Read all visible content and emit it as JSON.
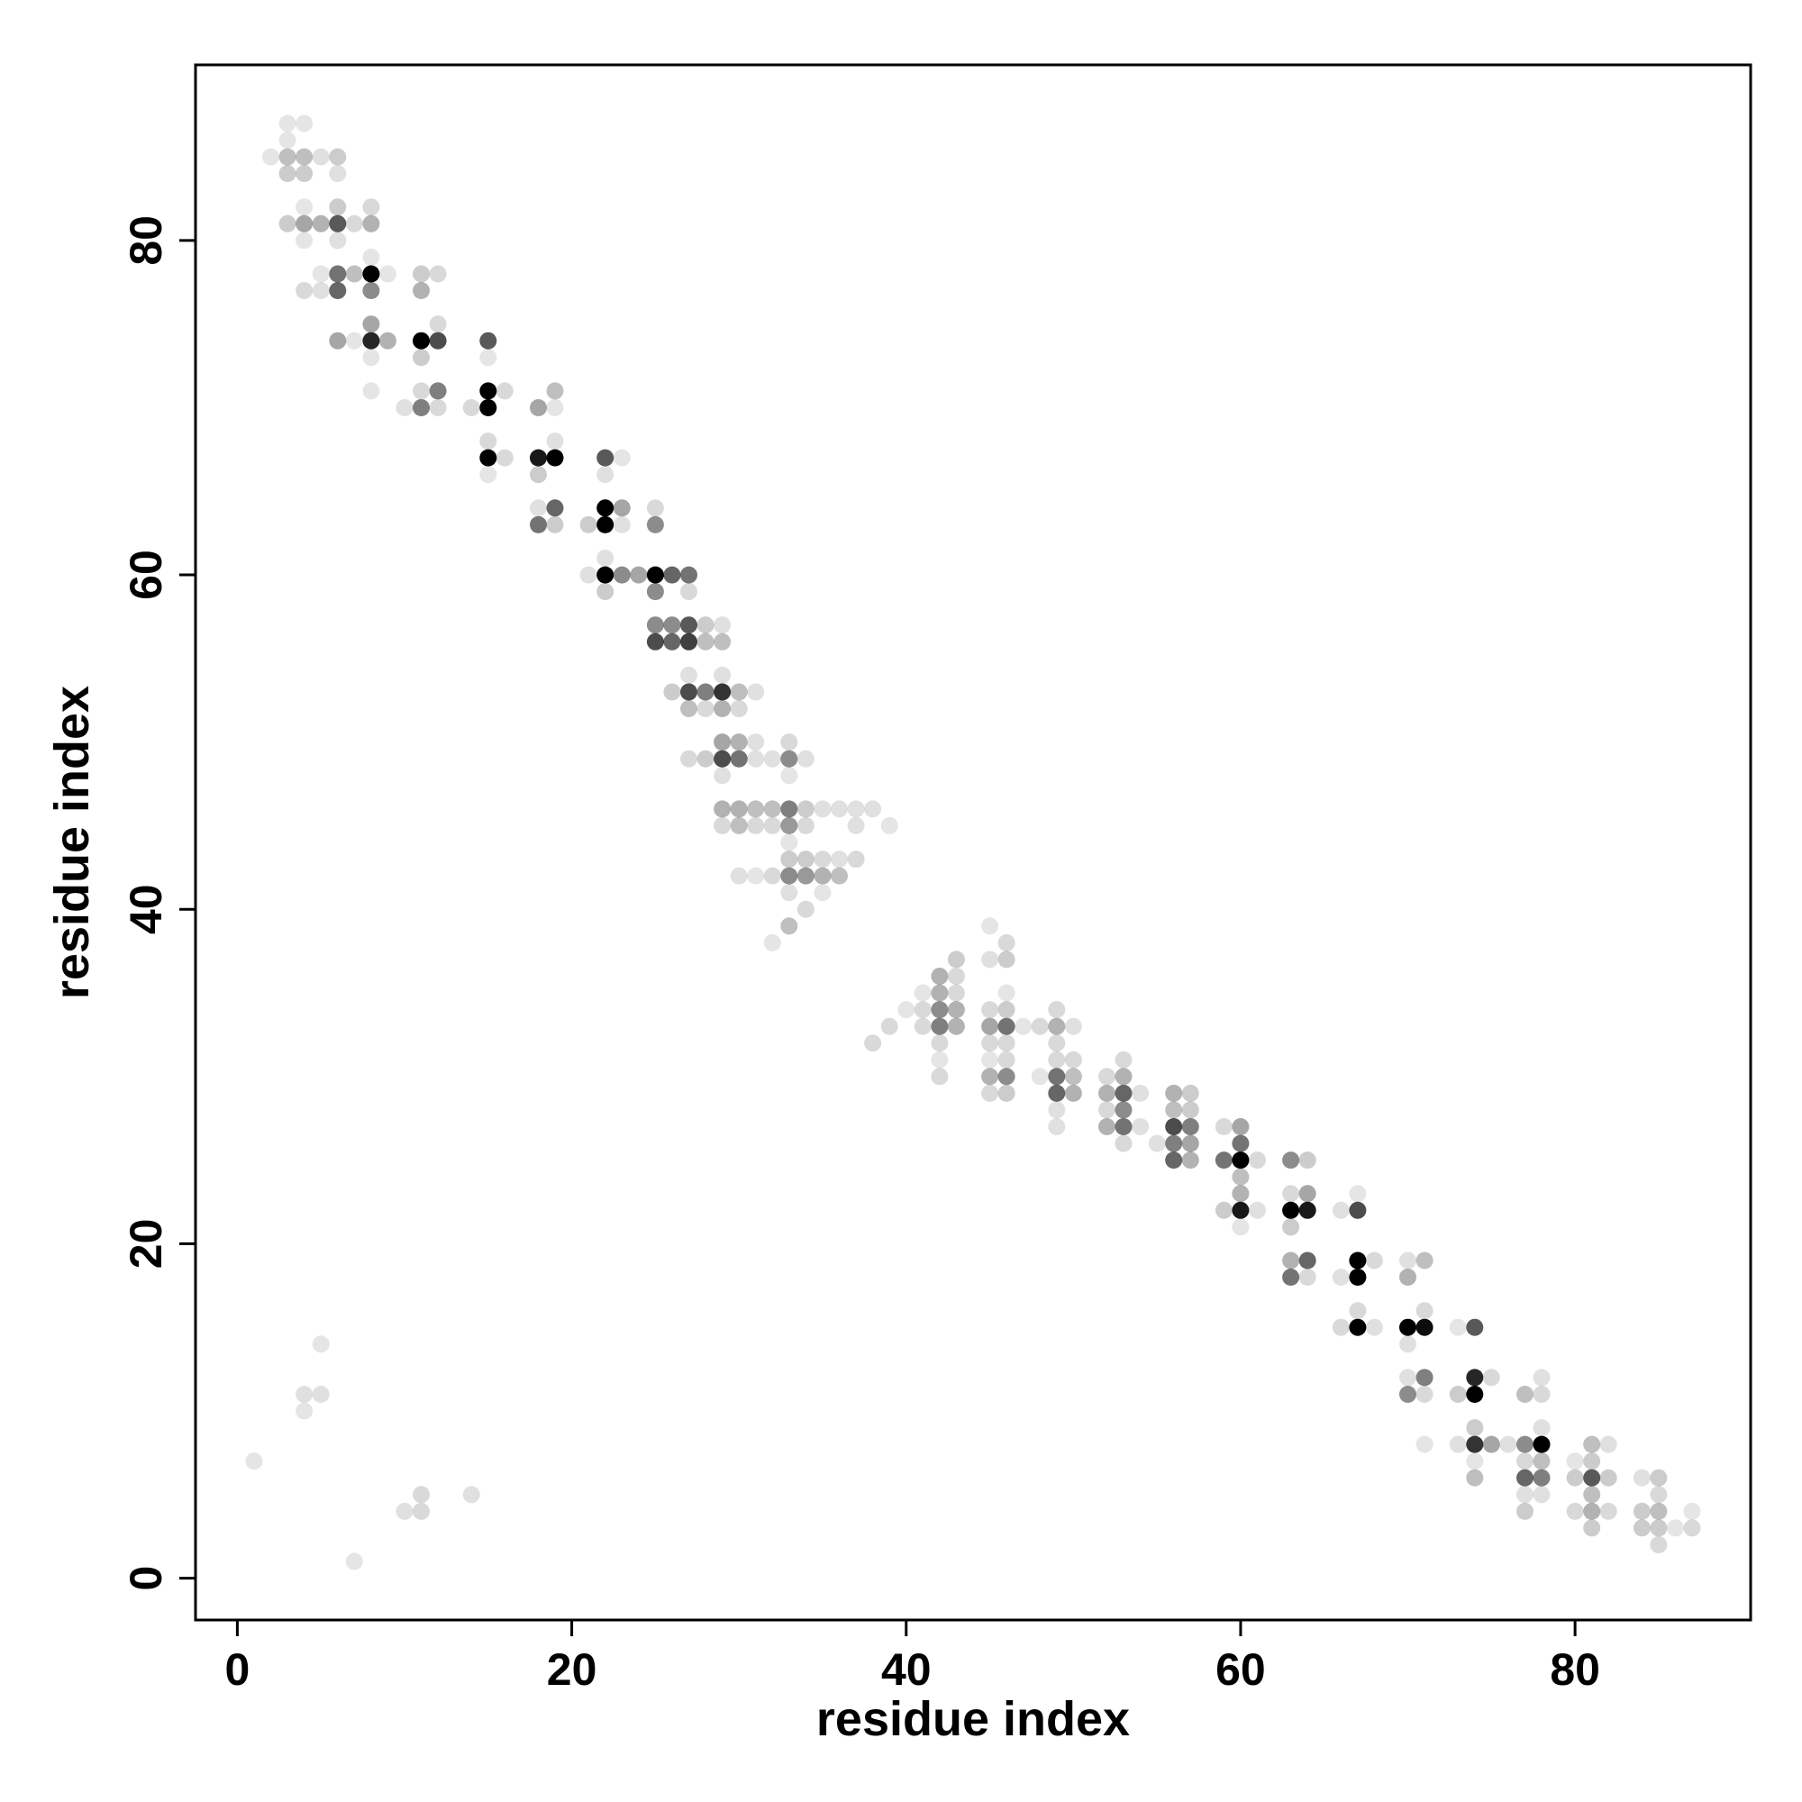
{
  "chart_data": {
    "type": "scatter",
    "title": "",
    "xlabel": "residue index",
    "ylabel": "residue index",
    "xlim": [
      -2.5,
      90.5
    ],
    "ylim": [
      -2.5,
      90.5
    ],
    "xticks": [
      0,
      20,
      40,
      60,
      80
    ],
    "yticks": [
      0,
      20,
      40,
      60,
      80
    ],
    "grid": false,
    "legend": "none",
    "point_color": "#000000",
    "intensity_meaning": "point darkness = contact frequency (0 to 1)",
    "points": [
      [
        3,
        87,
        0.1
      ],
      [
        4,
        87,
        0.1
      ],
      [
        2,
        85,
        0.1
      ],
      [
        3,
        86,
        0.1
      ],
      [
        3,
        85,
        0.25
      ],
      [
        4,
        85,
        0.25
      ],
      [
        5,
        85,
        0.12
      ],
      [
        6,
        85,
        0.2
      ],
      [
        3,
        84,
        0.2
      ],
      [
        4,
        84,
        0.2
      ],
      [
        6,
        84,
        0.12
      ],
      [
        4,
        82,
        0.1
      ],
      [
        6,
        82,
        0.2
      ],
      [
        8,
        82,
        0.15
      ],
      [
        3,
        81,
        0.2
      ],
      [
        4,
        81,
        0.35
      ],
      [
        5,
        81,
        0.3
      ],
      [
        6,
        81,
        0.65
      ],
      [
        7,
        81,
        0.15
      ],
      [
        8,
        81,
        0.3
      ],
      [
        4,
        80,
        0.1
      ],
      [
        6,
        80,
        0.12
      ],
      [
        8,
        79,
        0.1
      ],
      [
        5,
        78,
        0.1
      ],
      [
        6,
        78,
        0.55
      ],
      [
        7,
        78,
        0.25
      ],
      [
        8,
        78,
        1.0
      ],
      [
        9,
        78,
        0.1
      ],
      [
        4,
        77,
        0.15
      ],
      [
        5,
        77,
        0.12
      ],
      [
        6,
        77,
        0.6
      ],
      [
        8,
        77,
        0.45
      ],
      [
        8,
        75,
        0.35
      ],
      [
        6,
        74,
        0.35
      ],
      [
        7,
        74,
        0.1
      ],
      [
        8,
        74,
        0.85
      ],
      [
        9,
        74,
        0.3
      ],
      [
        8,
        73,
        0.1
      ],
      [
        8,
        71,
        0.1
      ],
      [
        11,
        78,
        0.2
      ],
      [
        12,
        78,
        0.15
      ],
      [
        11,
        77,
        0.3
      ],
      [
        12,
        75,
        0.15
      ],
      [
        11,
        74,
        1.0
      ],
      [
        12,
        74,
        0.7
      ],
      [
        11,
        73,
        0.2
      ],
      [
        11,
        71,
        0.15
      ],
      [
        12,
        71,
        0.5
      ],
      [
        10,
        70,
        0.12
      ],
      [
        11,
        70,
        0.5
      ],
      [
        12,
        70,
        0.15
      ],
      [
        15,
        74,
        0.65
      ],
      [
        15,
        73,
        0.1
      ],
      [
        15,
        71,
        1.0
      ],
      [
        16,
        71,
        0.15
      ],
      [
        14,
        70,
        0.15
      ],
      [
        15,
        70,
        1.0
      ],
      [
        15,
        68,
        0.15
      ],
      [
        15,
        67,
        1.0
      ],
      [
        16,
        67,
        0.15
      ],
      [
        15,
        66,
        0.1
      ],
      [
        18,
        70,
        0.35
      ],
      [
        19,
        71,
        0.25
      ],
      [
        19,
        70,
        0.1
      ],
      [
        19,
        68,
        0.12
      ],
      [
        18,
        67,
        0.9
      ],
      [
        19,
        67,
        1.0
      ],
      [
        18,
        66,
        0.2
      ],
      [
        18,
        64,
        0.12
      ],
      [
        19,
        64,
        0.6
      ],
      [
        18,
        63,
        0.55
      ],
      [
        19,
        63,
        0.2
      ],
      [
        22,
        67,
        0.65
      ],
      [
        23,
        67,
        0.1
      ],
      [
        22,
        66,
        0.12
      ],
      [
        22,
        64,
        1.0
      ],
      [
        23,
        64,
        0.35
      ],
      [
        21,
        63,
        0.2
      ],
      [
        22,
        63,
        1.0
      ],
      [
        23,
        63,
        0.12
      ],
      [
        22,
        61,
        0.12
      ],
      [
        21,
        60,
        0.12
      ],
      [
        22,
        60,
        1.0
      ],
      [
        23,
        60,
        0.45
      ],
      [
        24,
        60,
        0.35
      ],
      [
        22,
        59,
        0.2
      ],
      [
        25,
        64,
        0.15
      ],
      [
        25,
        63,
        0.45
      ],
      [
        25,
        60,
        1.0
      ],
      [
        26,
        60,
        0.6
      ],
      [
        27,
        60,
        0.55
      ],
      [
        25,
        59,
        0.45
      ],
      [
        27,
        59,
        0.15
      ],
      [
        25,
        57,
        0.45
      ],
      [
        26,
        57,
        0.45
      ],
      [
        27,
        57,
        0.65
      ],
      [
        28,
        57,
        0.2
      ],
      [
        29,
        57,
        0.12
      ],
      [
        25,
        56,
        0.7
      ],
      [
        26,
        56,
        0.6
      ],
      [
        27,
        56,
        0.75
      ],
      [
        28,
        56,
        0.25
      ],
      [
        29,
        56,
        0.25
      ],
      [
        27,
        54,
        0.12
      ],
      [
        29,
        54,
        0.12
      ],
      [
        26,
        53,
        0.2
      ],
      [
        27,
        53,
        0.7
      ],
      [
        28,
        53,
        0.5
      ],
      [
        29,
        53,
        0.8
      ],
      [
        30,
        53,
        0.25
      ],
      [
        31,
        53,
        0.12
      ],
      [
        27,
        52,
        0.25
      ],
      [
        28,
        52,
        0.15
      ],
      [
        29,
        52,
        0.3
      ],
      [
        30,
        52,
        0.15
      ],
      [
        29,
        50,
        0.35
      ],
      [
        30,
        50,
        0.3
      ],
      [
        31,
        50,
        0.12
      ],
      [
        33,
        50,
        0.15
      ],
      [
        27,
        49,
        0.15
      ],
      [
        28,
        49,
        0.2
      ],
      [
        29,
        49,
        0.7
      ],
      [
        30,
        49,
        0.55
      ],
      [
        31,
        49,
        0.12
      ],
      [
        32,
        49,
        0.12
      ],
      [
        33,
        49,
        0.45
      ],
      [
        34,
        49,
        0.12
      ],
      [
        29,
        48,
        0.12
      ],
      [
        33,
        48,
        0.1
      ],
      [
        29,
        46,
        0.3
      ],
      [
        30,
        46,
        0.3
      ],
      [
        31,
        46,
        0.25
      ],
      [
        32,
        46,
        0.25
      ],
      [
        33,
        46,
        0.5
      ],
      [
        34,
        46,
        0.2
      ],
      [
        35,
        46,
        0.12
      ],
      [
        36,
        46,
        0.12
      ],
      [
        37,
        46,
        0.12
      ],
      [
        38,
        46,
        0.12
      ],
      [
        29,
        45,
        0.15
      ],
      [
        30,
        45,
        0.25
      ],
      [
        31,
        45,
        0.15
      ],
      [
        32,
        45,
        0.15
      ],
      [
        33,
        45,
        0.4
      ],
      [
        34,
        45,
        0.15
      ],
      [
        37,
        45,
        0.12
      ],
      [
        39,
        45,
        0.1
      ],
      [
        33,
        44,
        0.1
      ],
      [
        33,
        43,
        0.2
      ],
      [
        34,
        43,
        0.2
      ],
      [
        35,
        43,
        0.15
      ],
      [
        36,
        43,
        0.12
      ],
      [
        37,
        43,
        0.15
      ],
      [
        30,
        42,
        0.12
      ],
      [
        31,
        42,
        0.1
      ],
      [
        32,
        42,
        0.15
      ],
      [
        33,
        42,
        0.45
      ],
      [
        34,
        42,
        0.4
      ],
      [
        35,
        42,
        0.3
      ],
      [
        36,
        42,
        0.25
      ],
      [
        33,
        41,
        0.12
      ],
      [
        35,
        41,
        0.1
      ],
      [
        34,
        40,
        0.15
      ],
      [
        33,
        39,
        0.25
      ],
      [
        32,
        38,
        0.1
      ],
      [
        45,
        39,
        0.1
      ],
      [
        46,
        38,
        0.15
      ],
      [
        43,
        37,
        0.2
      ],
      [
        45,
        37,
        0.12
      ],
      [
        46,
        37,
        0.2
      ],
      [
        42,
        36,
        0.3
      ],
      [
        43,
        36,
        0.15
      ],
      [
        41,
        35,
        0.1
      ],
      [
        42,
        35,
        0.3
      ],
      [
        43,
        35,
        0.15
      ],
      [
        46,
        35,
        0.1
      ],
      [
        40,
        34,
        0.1
      ],
      [
        41,
        34,
        0.15
      ],
      [
        42,
        34,
        0.45
      ],
      [
        43,
        34,
        0.3
      ],
      [
        45,
        34,
        0.15
      ],
      [
        46,
        34,
        0.2
      ],
      [
        39,
        33,
        0.15
      ],
      [
        41,
        33,
        0.15
      ],
      [
        42,
        33,
        0.5
      ],
      [
        43,
        33,
        0.3
      ],
      [
        45,
        33,
        0.35
      ],
      [
        46,
        33,
        0.55
      ],
      [
        47,
        33,
        0.1
      ],
      [
        48,
        33,
        0.15
      ],
      [
        38,
        32,
        0.15
      ],
      [
        42,
        32,
        0.15
      ],
      [
        45,
        32,
        0.15
      ],
      [
        46,
        32,
        0.15
      ],
      [
        42,
        31,
        0.1
      ],
      [
        45,
        31,
        0.1
      ],
      [
        46,
        31,
        0.15
      ],
      [
        42,
        30,
        0.15
      ],
      [
        45,
        30,
        0.3
      ],
      [
        46,
        30,
        0.45
      ],
      [
        45,
        29,
        0.15
      ],
      [
        46,
        29,
        0.2
      ],
      [
        49,
        34,
        0.15
      ],
      [
        49,
        33,
        0.3
      ],
      [
        50,
        33,
        0.12
      ],
      [
        49,
        32,
        0.15
      ],
      [
        49,
        31,
        0.15
      ],
      [
        50,
        31,
        0.15
      ],
      [
        48,
        30,
        0.1
      ],
      [
        49,
        30,
        0.55
      ],
      [
        50,
        30,
        0.25
      ],
      [
        49,
        29,
        0.6
      ],
      [
        50,
        29,
        0.3
      ],
      [
        49,
        28,
        0.12
      ],
      [
        49,
        27,
        0.12
      ],
      [
        53,
        31,
        0.15
      ],
      [
        52,
        30,
        0.15
      ],
      [
        53,
        30,
        0.3
      ],
      [
        52,
        29,
        0.3
      ],
      [
        53,
        29,
        0.6
      ],
      [
        54,
        29,
        0.12
      ],
      [
        52,
        28,
        0.15
      ],
      [
        53,
        28,
        0.45
      ],
      [
        52,
        27,
        0.3
      ],
      [
        53,
        27,
        0.55
      ],
      [
        54,
        27,
        0.12
      ],
      [
        53,
        26,
        0.15
      ],
      [
        56,
        29,
        0.3
      ],
      [
        57,
        29,
        0.2
      ],
      [
        56,
        28,
        0.25
      ],
      [
        57,
        28,
        0.2
      ],
      [
        56,
        27,
        0.7
      ],
      [
        57,
        27,
        0.5
      ],
      [
        55,
        26,
        0.12
      ],
      [
        56,
        26,
        0.5
      ],
      [
        57,
        26,
        0.35
      ],
      [
        56,
        25,
        0.6
      ],
      [
        57,
        25,
        0.3
      ],
      [
        59,
        27,
        0.15
      ],
      [
        60,
        27,
        0.35
      ],
      [
        60,
        26,
        0.55
      ],
      [
        59,
        25,
        0.55
      ],
      [
        60,
        25,
        1.0
      ],
      [
        61,
        25,
        0.15
      ],
      [
        60,
        24,
        0.25
      ],
      [
        60,
        23,
        0.3
      ],
      [
        59,
        22,
        0.2
      ],
      [
        60,
        22,
        0.9
      ],
      [
        61,
        22,
        0.12
      ],
      [
        60,
        21,
        0.1
      ],
      [
        63,
        25,
        0.45
      ],
      [
        64,
        25,
        0.2
      ],
      [
        63,
        23,
        0.15
      ],
      [
        64,
        23,
        0.35
      ],
      [
        63,
        22,
        1.0
      ],
      [
        64,
        22,
        0.9
      ],
      [
        63,
        21,
        0.2
      ],
      [
        63,
        19,
        0.3
      ],
      [
        64,
        19,
        0.6
      ],
      [
        63,
        18,
        0.55
      ],
      [
        64,
        18,
        0.15
      ],
      [
        67,
        23,
        0.1
      ],
      [
        66,
        22,
        0.12
      ],
      [
        67,
        22,
        0.7
      ],
      [
        67,
        19,
        1.0
      ],
      [
        68,
        19,
        0.15
      ],
      [
        67,
        18,
        1.0
      ],
      [
        66,
        18,
        0.12
      ],
      [
        67,
        16,
        0.15
      ],
      [
        66,
        15,
        0.15
      ],
      [
        67,
        15,
        1.0
      ],
      [
        68,
        15,
        0.12
      ],
      [
        70,
        19,
        0.12
      ],
      [
        71,
        19,
        0.25
      ],
      [
        70,
        18,
        0.3
      ],
      [
        71,
        16,
        0.15
      ],
      [
        70,
        15,
        1.0
      ],
      [
        71,
        15,
        0.95
      ],
      [
        70,
        14,
        0.12
      ],
      [
        70,
        12,
        0.12
      ],
      [
        71,
        12,
        0.5
      ],
      [
        70,
        11,
        0.45
      ],
      [
        71,
        11,
        0.15
      ],
      [
        71,
        8,
        0.1
      ],
      [
        73,
        15,
        0.1
      ],
      [
        74,
        15,
        0.65
      ],
      [
        74,
        12,
        0.85
      ],
      [
        75,
        12,
        0.15
      ],
      [
        73,
        11,
        0.2
      ],
      [
        74,
        11,
        1.0
      ],
      [
        74,
        9,
        0.2
      ],
      [
        73,
        8,
        0.12
      ],
      [
        74,
        8,
        0.8
      ],
      [
        75,
        8,
        0.35
      ],
      [
        74,
        7,
        0.1
      ],
      [
        74,
        6,
        0.25
      ],
      [
        77,
        11,
        0.25
      ],
      [
        78,
        11,
        0.15
      ],
      [
        78,
        12,
        0.12
      ],
      [
        76,
        8,
        0.12
      ],
      [
        77,
        8,
        0.45
      ],
      [
        78,
        8,
        1.0
      ],
      [
        78,
        9,
        0.12
      ],
      [
        77,
        7,
        0.15
      ],
      [
        78,
        7,
        0.25
      ],
      [
        77,
        6,
        0.6
      ],
      [
        78,
        6,
        0.5
      ],
      [
        77,
        5,
        0.12
      ],
      [
        78,
        5,
        0.12
      ],
      [
        77,
        4,
        0.2
      ],
      [
        81,
        8,
        0.25
      ],
      [
        82,
        8,
        0.12
      ],
      [
        80,
        7,
        0.1
      ],
      [
        81,
        7,
        0.2
      ],
      [
        80,
        6,
        0.2
      ],
      [
        81,
        6,
        0.65
      ],
      [
        82,
        6,
        0.2
      ],
      [
        81,
        5,
        0.25
      ],
      [
        80,
        4,
        0.15
      ],
      [
        81,
        4,
        0.3
      ],
      [
        82,
        4,
        0.15
      ],
      [
        81,
        3,
        0.2
      ],
      [
        84,
        6,
        0.12
      ],
      [
        85,
        6,
        0.2
      ],
      [
        85,
        5,
        0.15
      ],
      [
        84,
        4,
        0.2
      ],
      [
        85,
        4,
        0.25
      ],
      [
        87,
        4,
        0.1
      ],
      [
        84,
        3,
        0.2
      ],
      [
        85,
        3,
        0.2
      ],
      [
        86,
        3,
        0.1
      ],
      [
        87,
        3,
        0.15
      ],
      [
        85,
        2,
        0.15
      ],
      [
        1,
        7,
        0.1
      ],
      [
        4,
        11,
        0.12
      ],
      [
        5,
        11,
        0.12
      ],
      [
        5,
        14,
        0.1
      ],
      [
        4,
        10,
        0.1
      ],
      [
        7,
        1,
        0.1
      ],
      [
        10,
        4,
        0.12
      ],
      [
        11,
        4,
        0.15
      ],
      [
        11,
        5,
        0.15
      ],
      [
        14,
        5,
        0.12
      ]
    ]
  }
}
